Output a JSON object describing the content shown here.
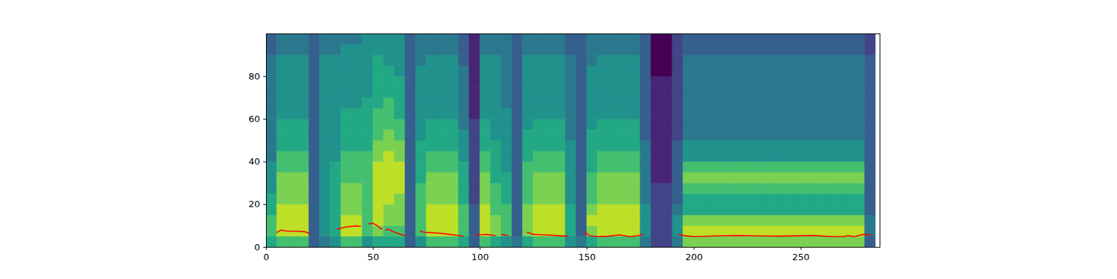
{
  "chart_data": {
    "type": "heatmap",
    "xlim": [
      0,
      287
    ],
    "ylim": [
      0,
      100
    ],
    "xticks": [
      0,
      50,
      100,
      150,
      200,
      250
    ],
    "yticks": [
      0,
      20,
      40,
      60,
      80
    ],
    "x_bins": [
      0,
      5,
      10,
      15,
      20,
      25,
      30,
      35,
      40,
      45,
      50,
      55,
      60,
      65,
      70,
      75,
      80,
      85,
      90,
      95,
      100,
      105,
      110,
      115,
      120,
      125,
      130,
      135,
      140,
      145,
      150,
      155,
      160,
      165,
      170,
      175,
      180,
      185,
      190,
      195,
      200,
      205,
      210,
      215,
      220,
      225,
      230,
      235,
      240,
      245,
      250,
      255,
      260,
      265,
      270,
      275,
      280,
      285,
      287
    ],
    "y_bins": [
      0,
      5,
      10,
      15,
      20,
      25,
      30,
      35,
      40,
      45,
      50,
      55,
      60,
      65,
      70,
      75,
      80,
      85,
      90,
      95,
      100
    ],
    "color_range": [
      0,
      10
    ],
    "cells": [
      [
        6,
        7,
        7,
        6,
        6,
        5,
        5,
        5,
        4,
        4,
        4,
        4,
        4,
        4,
        4,
        4,
        4,
        4,
        3,
        3
      ],
      [
        7,
        9,
        9,
        9,
        8,
        8,
        8,
        7,
        7,
        6,
        6,
        6,
        5,
        5,
        5,
        5,
        5,
        5,
        4,
        4
      ],
      [
        7,
        9,
        9,
        9,
        8,
        8,
        8,
        7,
        7,
        6,
        6,
        6,
        5,
        5,
        5,
        5,
        5,
        5,
        4,
        4
      ],
      [
        7,
        9,
        9,
        9,
        8,
        8,
        8,
        7,
        7,
        6,
        6,
        6,
        5,
        5,
        5,
        5,
        5,
        5,
        4,
        4
      ],
      [
        3,
        3,
        3,
        3,
        3,
        3,
        3,
        3,
        3,
        3,
        3,
        3,
        3,
        3,
        3,
        3,
        3,
        3,
        3,
        3
      ],
      [
        4,
        5,
        5,
        5,
        5,
        5,
        5,
        5,
        5,
        5,
        5,
        5,
        5,
        5,
        5,
        5,
        5,
        5,
        4,
        4
      ],
      [
        5,
        6,
        6,
        6,
        6,
        6,
        6,
        6,
        5,
        5,
        5,
        5,
        5,
        5,
        5,
        5,
        5,
        5,
        4,
        4
      ],
      [
        7,
        9,
        9,
        8,
        8,
        8,
        7,
        7,
        7,
        6,
        6,
        6,
        6,
        5,
        5,
        5,
        5,
        5,
        5,
        4
      ],
      [
        7,
        9,
        9,
        8,
        8,
        8,
        7,
        7,
        7,
        6,
        6,
        6,
        6,
        5,
        5,
        5,
        5,
        5,
        5,
        4
      ],
      [
        5,
        7,
        7,
        7,
        7,
        7,
        7,
        7,
        7,
        6,
        6,
        6,
        6,
        6,
        5,
        5,
        5,
        5,
        5,
        5
      ],
      [
        6,
        8,
        9,
        9,
        9,
        9,
        9,
        9,
        8,
        8,
        7,
        7,
        7,
        6,
        6,
        6,
        6,
        6,
        5,
        5
      ],
      [
        6,
        7,
        8,
        8,
        9,
        9,
        9,
        9,
        9,
        8,
        8,
        7,
        7,
        7,
        6,
        6,
        6,
        5,
        5,
        5
      ],
      [
        6,
        7,
        8,
        8,
        8,
        9,
        9,
        9,
        8,
        8,
        7,
        7,
        6,
        6,
        6,
        6,
        5,
        5,
        5,
        5
      ],
      [
        3,
        3,
        3,
        3,
        3,
        3,
        3,
        3,
        3,
        3,
        3,
        3,
        3,
        3,
        3,
        3,
        3,
        3,
        3,
        3
      ],
      [
        5,
        7,
        7,
        7,
        7,
        7,
        6,
        6,
        6,
        6,
        5,
        5,
        5,
        5,
        5,
        5,
        5,
        4,
        4,
        4
      ],
      [
        7,
        9,
        9,
        9,
        8,
        8,
        8,
        7,
        7,
        6,
        6,
        6,
        5,
        5,
        5,
        5,
        5,
        5,
        4,
        4
      ],
      [
        7,
        9,
        9,
        9,
        8,
        8,
        8,
        7,
        7,
        6,
        6,
        6,
        5,
        5,
        5,
        5,
        5,
        5,
        4,
        4
      ],
      [
        7,
        9,
        9,
        9,
        8,
        8,
        8,
        7,
        7,
        6,
        6,
        6,
        5,
        5,
        5,
        5,
        5,
        5,
        4,
        4
      ],
      [
        6,
        7,
        7,
        7,
        6,
        6,
        6,
        6,
        5,
        5,
        5,
        4,
        4,
        4,
        4,
        4,
        4,
        3,
        3,
        3
      ],
      [
        3,
        3,
        3,
        3,
        2,
        2,
        2,
        2,
        2,
        2,
        2,
        2,
        1,
        1,
        1,
        1,
        1,
        1,
        1,
        1
      ],
      [
        7,
        9,
        9,
        9,
        8,
        8,
        8,
        7,
        7,
        6,
        6,
        6,
        5,
        5,
        5,
        5,
        5,
        5,
        4,
        4
      ],
      [
        6,
        8,
        8,
        7,
        7,
        7,
        6,
        6,
        6,
        6,
        5,
        5,
        5,
        5,
        5,
        5,
        5,
        5,
        4,
        4
      ],
      [
        5,
        7,
        7,
        7,
        6,
        6,
        6,
        5,
        5,
        5,
        5,
        5,
        5,
        4,
        4,
        4,
        4,
        4,
        4,
        4
      ],
      [
        4,
        3,
        3,
        3,
        3,
        3,
        3,
        3,
        3,
        3,
        3,
        3,
        3,
        3,
        3,
        3,
        3,
        3,
        3,
        3
      ],
      [
        6,
        8,
        8,
        8,
        7,
        7,
        7,
        7,
        6,
        6,
        6,
        5,
        5,
        5,
        5,
        5,
        5,
        5,
        4,
        4
      ],
      [
        7,
        9,
        9,
        9,
        8,
        8,
        8,
        7,
        7,
        6,
        6,
        6,
        5,
        5,
        5,
        5,
        5,
        5,
        4,
        4
      ],
      [
        7,
        9,
        9,
        9,
        8,
        8,
        8,
        7,
        7,
        6,
        6,
        6,
        5,
        5,
        5,
        5,
        5,
        5,
        4,
        4
      ],
      [
        7,
        9,
        9,
        9,
        8,
        8,
        8,
        7,
        7,
        6,
        6,
        6,
        5,
        5,
        5,
        5,
        5,
        5,
        4,
        4
      ],
      [
        5,
        6,
        6,
        6,
        5,
        5,
        5,
        5,
        5,
        5,
        4,
        4,
        4,
        4,
        4,
        4,
        4,
        4,
        3,
        3
      ],
      [
        4,
        3,
        3,
        3,
        3,
        3,
        3,
        3,
        3,
        3,
        3,
        3,
        3,
        3,
        3,
        3,
        3,
        3,
        3,
        3
      ],
      [
        6,
        8,
        9,
        8,
        7,
        7,
        7,
        6,
        6,
        6,
        6,
        5,
        5,
        5,
        5,
        5,
        5,
        4,
        4,
        4
      ],
      [
        7,
        9,
        9,
        9,
        8,
        8,
        8,
        7,
        7,
        6,
        6,
        6,
        5,
        5,
        5,
        5,
        5,
        5,
        4,
        4
      ],
      [
        7,
        9,
        9,
        9,
        8,
        8,
        8,
        7,
        7,
        6,
        6,
        6,
        5,
        5,
        5,
        5,
        5,
        5,
        4,
        4
      ],
      [
        7,
        9,
        9,
        9,
        8,
        8,
        8,
        7,
        7,
        6,
        6,
        6,
        5,
        5,
        5,
        5,
        5,
        5,
        4,
        4
      ],
      [
        7,
        9,
        9,
        9,
        8,
        8,
        8,
        7,
        7,
        6,
        6,
        6,
        5,
        5,
        5,
        5,
        5,
        5,
        4,
        4
      ],
      [
        4,
        5,
        5,
        5,
        4,
        4,
        4,
        4,
        4,
        4,
        3,
        3,
        3,
        3,
        3,
        3,
        3,
        3,
        3,
        3
      ],
      [
        2,
        2,
        2,
        2,
        2,
        2,
        1,
        1,
        1,
        1,
        1,
        1,
        1,
        1,
        1,
        1,
        0,
        0,
        0,
        0
      ],
      [
        2,
        2,
        2,
        2,
        2,
        2,
        1,
        1,
        1,
        1,
        1,
        1,
        1,
        1,
        1,
        1,
        0,
        0,
        0,
        0
      ],
      [
        4,
        5,
        5,
        4,
        3,
        3,
        3,
        3,
        3,
        3,
        2,
        2,
        2,
        2,
        2,
        2,
        2,
        2,
        2,
        2
      ],
      [
        8,
        9,
        8,
        6,
        6,
        7,
        8,
        7,
        5,
        5,
        4,
        4,
        4,
        4,
        4,
        4,
        4,
        4,
        3,
        3
      ],
      [
        8,
        9,
        8,
        6,
        6,
        7,
        8,
        7,
        5,
        5,
        4,
        4,
        4,
        4,
        4,
        4,
        4,
        4,
        3,
        3
      ],
      [
        8,
        9,
        8,
        6,
        6,
        7,
        8,
        7,
        5,
        5,
        4,
        4,
        4,
        4,
        4,
        4,
        4,
        4,
        3,
        3
      ],
      [
        8,
        9,
        8,
        6,
        6,
        7,
        8,
        7,
        5,
        5,
        4,
        4,
        4,
        4,
        4,
        4,
        4,
        4,
        3,
        3
      ],
      [
        8,
        9,
        8,
        6,
        6,
        7,
        8,
        7,
        5,
        5,
        4,
        4,
        4,
        4,
        4,
        4,
        4,
        4,
        3,
        3
      ],
      [
        8,
        9,
        8,
        6,
        6,
        7,
        8,
        7,
        5,
        5,
        4,
        4,
        4,
        4,
        4,
        4,
        4,
        4,
        3,
        3
      ],
      [
        8,
        9,
        8,
        6,
        6,
        7,
        8,
        7,
        5,
        5,
        4,
        4,
        4,
        4,
        4,
        4,
        4,
        4,
        3,
        3
      ],
      [
        8,
        9,
        8,
        6,
        6,
        7,
        8,
        7,
        5,
        5,
        4,
        4,
        4,
        4,
        4,
        4,
        4,
        4,
        3,
        3
      ],
      [
        8,
        9,
        8,
        6,
        6,
        7,
        8,
        7,
        5,
        5,
        4,
        4,
        4,
        4,
        4,
        4,
        4,
        4,
        3,
        3
      ],
      [
        8,
        9,
        8,
        6,
        6,
        7,
        8,
        7,
        5,
        5,
        4,
        4,
        4,
        4,
        4,
        4,
        4,
        4,
        3,
        3
      ],
      [
        8,
        9,
        8,
        6,
        6,
        7,
        8,
        7,
        5,
        5,
        4,
        4,
        4,
        4,
        4,
        4,
        4,
        4,
        3,
        3
      ],
      [
        8,
        9,
        8,
        6,
        6,
        7,
        8,
        7,
        5,
        5,
        4,
        4,
        4,
        4,
        4,
        4,
        4,
        4,
        3,
        3
      ],
      [
        8,
        9,
        8,
        6,
        6,
        7,
        8,
        7,
        5,
        5,
        4,
        4,
        4,
        4,
        4,
        4,
        4,
        4,
        3,
        3
      ],
      [
        8,
        9,
        8,
        6,
        6,
        7,
        8,
        7,
        5,
        5,
        4,
        4,
        4,
        4,
        4,
        4,
        4,
        4,
        3,
        3
      ],
      [
        8,
        9,
        8,
        6,
        6,
        7,
        8,
        7,
        5,
        5,
        4,
        4,
        4,
        4,
        4,
        4,
        4,
        4,
        3,
        3
      ],
      [
        8,
        9,
        8,
        6,
        6,
        7,
        8,
        7,
        5,
        5,
        4,
        4,
        4,
        4,
        4,
        4,
        4,
        4,
        3,
        3
      ],
      [
        8,
        9,
        8,
        6,
        6,
        7,
        8,
        7,
        5,
        5,
        4,
        4,
        4,
        4,
        4,
        4,
        4,
        4,
        3,
        3
      ],
      [
        3,
        4,
        4,
        3,
        3,
        3,
        3,
        3,
        3,
        3,
        3,
        3,
        3,
        3,
        3,
        3,
        3,
        3,
        2,
        2
      ]
    ],
    "series": [
      {
        "type": "line",
        "color": "red",
        "x": [
          5,
          7,
          10,
          14,
          18,
          20,
          21,
          33,
          37,
          42,
          44,
          46,
          48,
          50,
          52,
          54,
          55,
          56,
          57,
          60,
          63,
          65,
          68,
          72,
          74,
          78,
          82,
          86,
          90,
          92,
          95,
          98,
          100,
          103,
          107,
          108,
          110,
          113,
          117,
          122,
          125,
          130,
          135,
          141,
          145,
          149,
          151,
          155,
          160,
          165,
          170,
          174,
          176,
          185,
          193,
          195,
          200,
          210,
          220,
          230,
          240,
          255,
          265,
          270,
          272,
          275,
          279,
          283
        ],
        "values": [
          7,
          8,
          7.5,
          7.5,
          7.3,
          6.5,
          null,
          8.5,
          9.5,
          10,
          9.8,
          null,
          11,
          11.2,
          10,
          8.5,
          null,
          8,
          8.5,
          7,
          6,
          5.5,
          null,
          7.5,
          7,
          6.8,
          6.5,
          6,
          5.5,
          5.2,
          null,
          6,
          5.8,
          6,
          5.5,
          null,
          6,
          5.5,
          null,
          7,
          6,
          5.8,
          5.5,
          5.2,
          null,
          7,
          5.5,
          5,
          5.2,
          5.8,
          5,
          5.5,
          6,
          null,
          6,
          5.5,
          5,
          5.3,
          5.5,
          5.3,
          5.2,
          5.5,
          5,
          5,
          5.5,
          5,
          6,
          5.8
        ]
      }
    ]
  }
}
